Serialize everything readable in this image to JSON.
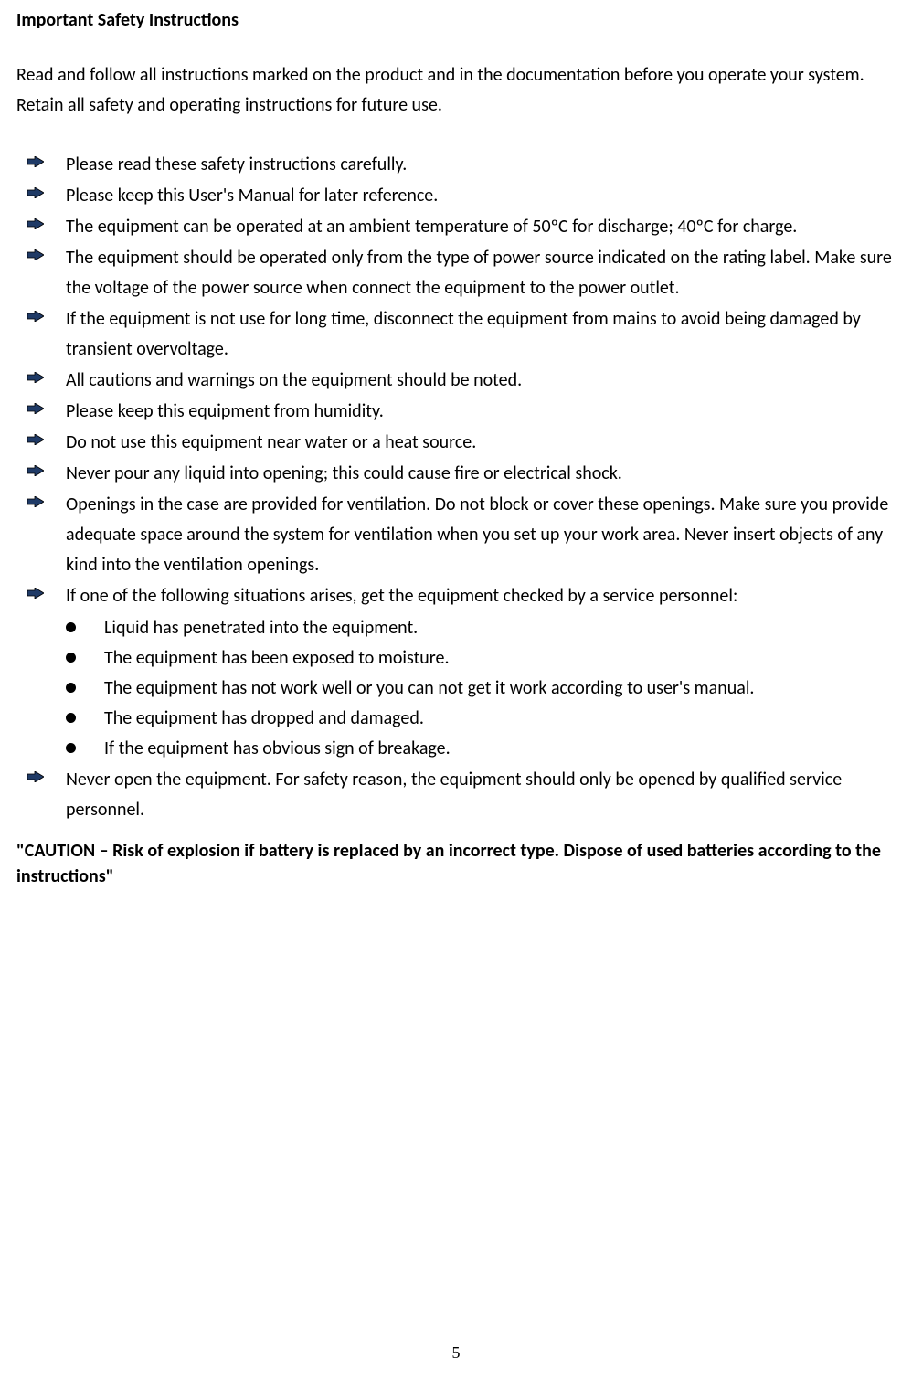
{
  "heading": "Important Safety Instructions",
  "intro": "Read and follow all instructions marked on the product and in the documentation before you operate your system. Retain all safety and operating instructions for future use.",
  "items": [
    {
      "text": "Please read these safety instructions carefully."
    },
    {
      "text": "Please keep this User's Manual for later reference."
    },
    {
      "text": "The equipment can be operated at an ambient temperature of 50ºC for discharge; 40ºC for charge."
    },
    {
      "text": "The equipment should be operated only from the type of power source indicated on the rating label. Make sure the voltage of the power source when connect the equipment to the power outlet."
    },
    {
      "text": "If the equipment is not use for long time, disconnect the equipment from mains to avoid being damaged by transient overvoltage."
    },
    {
      "text": "All cautions and warnings on the equipment should be noted."
    },
    {
      "text": "Please keep this equipment from humidity."
    },
    {
      "text": "Do not use this equipment near water or a heat source."
    },
    {
      "text": "Never pour any liquid into opening; this could cause fire or electrical shock."
    },
    {
      "text": "Openings in the case are provided for ventilation. Do not block or cover these openings. Make sure you provide adequate space around the system for ventilation when you set up your work area. Never insert objects of any kind into the ventilation openings."
    },
    {
      "text": "If one of the following situations arises, get the equipment checked by a service personnel:",
      "sub": [
        "Liquid has penetrated into the equipment.",
        "The equipment has been exposed to moisture.",
        "The equipment has not work well or you can not get it work according to user's manual.",
        "The equipment has dropped and damaged.",
        "If the equipment has obvious sign of breakage."
      ]
    },
    {
      "text": "Never open the equipment. For safety reason, the equipment should only be opened by qualified service personnel."
    }
  ],
  "caution": "\"CAUTION – Risk of explosion if battery is replaced by an incorrect type. Dispose of used batteries according to the instructions\"",
  "page_number": "5",
  "bullet_fill_color": "#1f3a66",
  "bullet_outline_color": "#000000"
}
